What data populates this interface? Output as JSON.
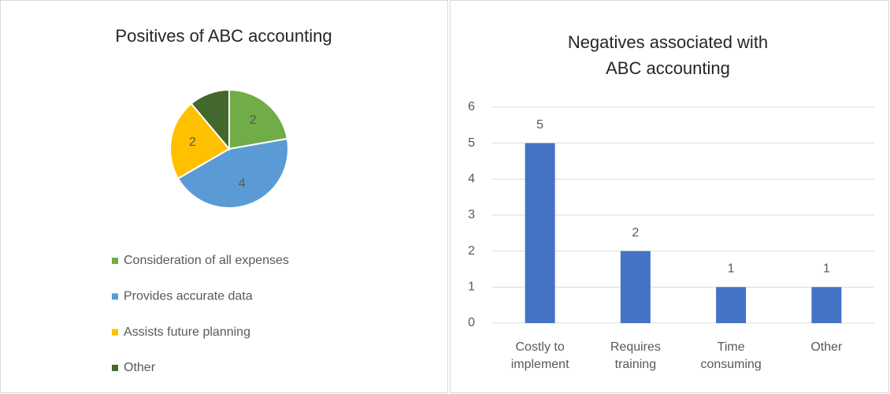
{
  "chart_data": [
    {
      "type": "pie",
      "title": "Positives of ABC accounting",
      "labels": [
        "Consideration of all expenses",
        "Provides accurate data",
        "Assists future planning",
        "Other"
      ],
      "values": [
        2,
        4,
        2,
        1
      ],
      "colors": [
        "#70ad47",
        "#5b9bd5",
        "#ffc000",
        "#43682b"
      ]
    },
    {
      "type": "bar",
      "title": "Negatives associated with ABC accounting",
      "categories": [
        "Costly to implement",
        "Requires training",
        "Time consuming",
        "Other"
      ],
      "values": [
        5,
        2,
        1,
        1
      ],
      "color": "#4472c4",
      "ylim": [
        0,
        6
      ],
      "yticks": [
        0,
        1,
        2,
        3,
        4,
        5,
        6
      ],
      "grid": true
    }
  ]
}
